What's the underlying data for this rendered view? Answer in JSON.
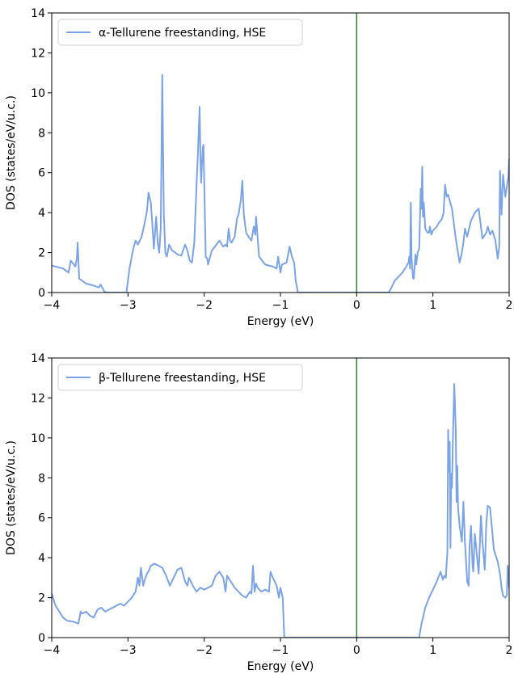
{
  "chart_data": [
    {
      "type": "line",
      "title": "",
      "xlabel": "Energy (eV)",
      "ylabel": "DOS (states/eV/u.c.)",
      "xlim": [
        -4,
        2
      ],
      "ylim": [
        0,
        14
      ],
      "xticks": [
        -4,
        -3,
        -2,
        -1,
        0,
        1,
        2
      ],
      "xtick_labels": [
        "−4",
        "−3",
        "−2",
        "−1",
        "0",
        "1",
        "2"
      ],
      "yticks": [
        0,
        2,
        4,
        6,
        8,
        10,
        12,
        14
      ],
      "ytick_labels": [
        "0",
        "2",
        "4",
        "6",
        "8",
        "10",
        "12",
        "14"
      ],
      "grid": false,
      "legend_position": "top-left",
      "fermi_line": {
        "x": 0,
        "color": "#2e7d32"
      },
      "series": [
        {
          "name": "α-Tellurene freestanding, HSE",
          "color": "#7ba3e8",
          "x": [
            -4.0,
            -3.85,
            -3.78,
            -3.75,
            -3.72,
            -3.69,
            -3.67,
            -3.66,
            -3.64,
            -3.55,
            -3.45,
            -3.38,
            -3.36,
            -3.33,
            -3.31,
            -3.28,
            -3.1,
            -3.02,
            -2.98,
            -2.93,
            -2.9,
            -2.87,
            -2.82,
            -2.78,
            -2.75,
            -2.73,
            -2.7,
            -2.68,
            -2.66,
            -2.63,
            -2.61,
            -2.59,
            -2.57,
            -2.55,
            -2.53,
            -2.51,
            -2.49,
            -2.46,
            -2.42,
            -2.38,
            -2.35,
            -2.3,
            -2.25,
            -2.22,
            -2.19,
            -2.16,
            -2.13,
            -2.1,
            -2.08,
            -2.06,
            -2.05,
            -2.04,
            -2.02,
            -2.01,
            -2.0,
            -1.98,
            -1.96,
            -1.95,
            -1.9,
            -1.8,
            -1.75,
            -1.72,
            -1.7,
            -1.68,
            -1.66,
            -1.64,
            -1.6,
            -1.57,
            -1.55,
            -1.52,
            -1.5,
            -1.48,
            -1.45,
            -1.42,
            -1.38,
            -1.35,
            -1.33,
            -1.32,
            -1.3,
            -1.28,
            -1.2,
            -1.1,
            -1.05,
            -1.03,
            -1.0,
            -0.98,
            -0.92,
            -0.88,
            -0.85,
            -0.82,
            -0.8,
            -0.77,
            -0.76,
            -0.7,
            0.0,
            0.42,
            0.45,
            0.5,
            0.6,
            0.65,
            0.68,
            0.69,
            0.7,
            0.71,
            0.72,
            0.74,
            0.75,
            0.77,
            0.78,
            0.8,
            0.82,
            0.84,
            0.85,
            0.86,
            0.87,
            0.88,
            0.9,
            0.93,
            0.95,
            0.96,
            0.98,
            1.0,
            1.05,
            1.08,
            1.1,
            1.12,
            1.14,
            1.16,
            1.18,
            1.2,
            1.22,
            1.25,
            1.3,
            1.35,
            1.38,
            1.4,
            1.42,
            1.45,
            1.5,
            1.55,
            1.6,
            1.62,
            1.65,
            1.7,
            1.72,
            1.75,
            1.78,
            1.82,
            1.85,
            1.87,
            1.88,
            1.9,
            1.92,
            1.95,
            1.97,
            1.99,
            2.0
          ],
          "y": [
            1.35,
            1.2,
            1.0,
            1.6,
            1.45,
            1.3,
            1.7,
            2.5,
            0.7,
            0.45,
            0.35,
            0.25,
            0.4,
            0.2,
            0.05,
            0.0,
            0.0,
            0.0,
            1.2,
            2.2,
            2.6,
            2.4,
            2.8,
            3.5,
            4.1,
            5.0,
            4.5,
            3.4,
            2.2,
            3.8,
            2.5,
            2.0,
            3.2,
            10.9,
            4.0,
            2.0,
            1.8,
            2.4,
            2.1,
            2.0,
            1.9,
            1.85,
            2.4,
            2.1,
            1.6,
            1.5,
            2.5,
            5.4,
            7.2,
            9.3,
            6.8,
            5.5,
            7.2,
            7.4,
            5.6,
            1.8,
            1.7,
            1.4,
            2.1,
            2.6,
            2.3,
            2.4,
            2.3,
            3.2,
            2.6,
            2.5,
            2.8,
            3.7,
            3.9,
            4.6,
            5.6,
            3.9,
            3.0,
            2.8,
            2.6,
            3.3,
            2.9,
            3.8,
            2.8,
            1.8,
            1.4,
            1.3,
            1.2,
            1.8,
            1.0,
            1.4,
            1.5,
            2.3,
            1.8,
            1.5,
            0.6,
            0.0,
            0.0,
            0.0,
            0.0,
            0.0,
            0.2,
            0.6,
            1.0,
            1.3,
            1.5,
            1.8,
            1.2,
            4.5,
            1.7,
            0.7,
            0.7,
            1.9,
            1.4,
            2.0,
            2.2,
            5.2,
            4.2,
            6.3,
            3.8,
            4.5,
            3.2,
            3.0,
            3.0,
            3.3,
            2.9,
            3.1,
            3.3,
            3.5,
            3.6,
            3.7,
            4.0,
            5.4,
            4.8,
            4.9,
            4.6,
            4.2,
            2.7,
            1.5,
            2.0,
            2.5,
            3.2,
            2.8,
            3.6,
            4.0,
            4.2,
            3.6,
            2.7,
            3.0,
            3.3,
            2.9,
            3.1,
            2.6,
            1.7,
            2.3,
            6.1,
            3.9,
            5.9,
            4.8,
            5.3,
            5.8,
            6.7
          ]
        }
      ]
    },
    {
      "type": "line",
      "title": "",
      "xlabel": "Energy (eV)",
      "ylabel": "DOS (states/eV/u.c.)",
      "xlim": [
        -4,
        2
      ],
      "ylim": [
        0,
        14
      ],
      "xticks": [
        -4,
        -3,
        -2,
        -1,
        0,
        1,
        2
      ],
      "xtick_labels": [
        "−4",
        "−3",
        "−2",
        "−1",
        "0",
        "1",
        "2"
      ],
      "yticks": [
        0,
        2,
        4,
        6,
        8,
        10,
        12,
        14
      ],
      "ytick_labels": [
        "0",
        "2",
        "4",
        "6",
        "8",
        "10",
        "12",
        "14"
      ],
      "grid": false,
      "legend_position": "top-left",
      "fermi_line": {
        "x": 0,
        "color": "#2e7d32"
      },
      "series": [
        {
          "name": "β-Tellurene freestanding, HSE",
          "color": "#7ba3e8",
          "x": [
            -4.0,
            -3.95,
            -3.9,
            -3.85,
            -3.8,
            -3.72,
            -3.65,
            -3.62,
            -3.6,
            -3.55,
            -3.5,
            -3.45,
            -3.4,
            -3.35,
            -3.3,
            -3.25,
            -3.2,
            -3.15,
            -3.1,
            -3.05,
            -3.0,
            -2.95,
            -2.9,
            -2.87,
            -2.85,
            -2.83,
            -2.8,
            -2.78,
            -2.75,
            -2.72,
            -2.7,
            -2.65,
            -2.6,
            -2.55,
            -2.5,
            -2.45,
            -2.4,
            -2.35,
            -2.3,
            -2.25,
            -2.22,
            -2.2,
            -2.15,
            -2.1,
            -2.05,
            -2.0,
            -1.95,
            -1.9,
            -1.85,
            -1.8,
            -1.75,
            -1.72,
            -1.7,
            -1.65,
            -1.6,
            -1.55,
            -1.5,
            -1.45,
            -1.4,
            -1.38,
            -1.36,
            -1.34,
            -1.32,
            -1.3,
            -1.25,
            -1.2,
            -1.15,
            -1.13,
            -1.1,
            -1.05,
            -1.02,
            -1.0,
            -0.97,
            -0.95,
            -0.93,
            -0.9,
            0.0,
            0.82,
            0.85,
            0.87,
            0.9,
            0.95,
            1.0,
            1.05,
            1.1,
            1.13,
            1.15,
            1.17,
            1.18,
            1.19,
            1.2,
            1.21,
            1.22,
            1.23,
            1.24,
            1.25,
            1.26,
            1.28,
            1.3,
            1.31,
            1.32,
            1.33,
            1.35,
            1.38,
            1.4,
            1.42,
            1.45,
            1.47,
            1.48,
            1.5,
            1.52,
            1.53,
            1.55,
            1.58,
            1.6,
            1.63,
            1.65,
            1.68,
            1.7,
            1.72,
            1.75,
            1.8,
            1.85,
            1.88,
            1.9,
            1.92,
            1.95,
            1.97,
            1.98,
            2.0
          ],
          "y": [
            2.2,
            1.6,
            1.3,
            1.0,
            0.85,
            0.8,
            0.7,
            1.3,
            1.2,
            1.3,
            1.1,
            1.0,
            1.4,
            1.5,
            1.3,
            1.4,
            1.5,
            1.6,
            1.7,
            1.6,
            1.8,
            2.0,
            2.3,
            3.0,
            2.6,
            3.5,
            2.6,
            2.9,
            3.2,
            3.4,
            3.6,
            3.7,
            3.6,
            3.5,
            3.1,
            2.6,
            3.0,
            3.4,
            3.5,
            2.8,
            2.6,
            3.0,
            2.6,
            2.3,
            2.5,
            2.4,
            2.5,
            2.6,
            3.1,
            3.3,
            3.0,
            2.3,
            3.1,
            2.8,
            2.5,
            2.3,
            2.1,
            2.0,
            2.3,
            2.2,
            3.6,
            2.3,
            2.7,
            2.5,
            2.3,
            2.4,
            2.3,
            3.3,
            3.0,
            2.6,
            2.0,
            2.5,
            2.0,
            0.0,
            0.0,
            0.0,
            0.0,
            0.0,
            0.7,
            1.0,
            1.5,
            2.0,
            2.4,
            2.8,
            3.3,
            2.9,
            3.1,
            3.0,
            3.7,
            4.3,
            10.4,
            8.3,
            9.8,
            4.5,
            8.2,
            7.5,
            9.5,
            12.7,
            10.4,
            6.8,
            8.6,
            6.5,
            5.6,
            4.8,
            6.8,
            4.8,
            2.8,
            2.6,
            4.5,
            5.6,
            3.6,
            3.3,
            5.2,
            4.0,
            3.2,
            6.1,
            4.8,
            3.4,
            5.7,
            6.6,
            6.5,
            4.4,
            3.8,
            3.2,
            2.5,
            2.1,
            2.0,
            2.1,
            3.6,
            2.5
          ]
        }
      ]
    }
  ]
}
